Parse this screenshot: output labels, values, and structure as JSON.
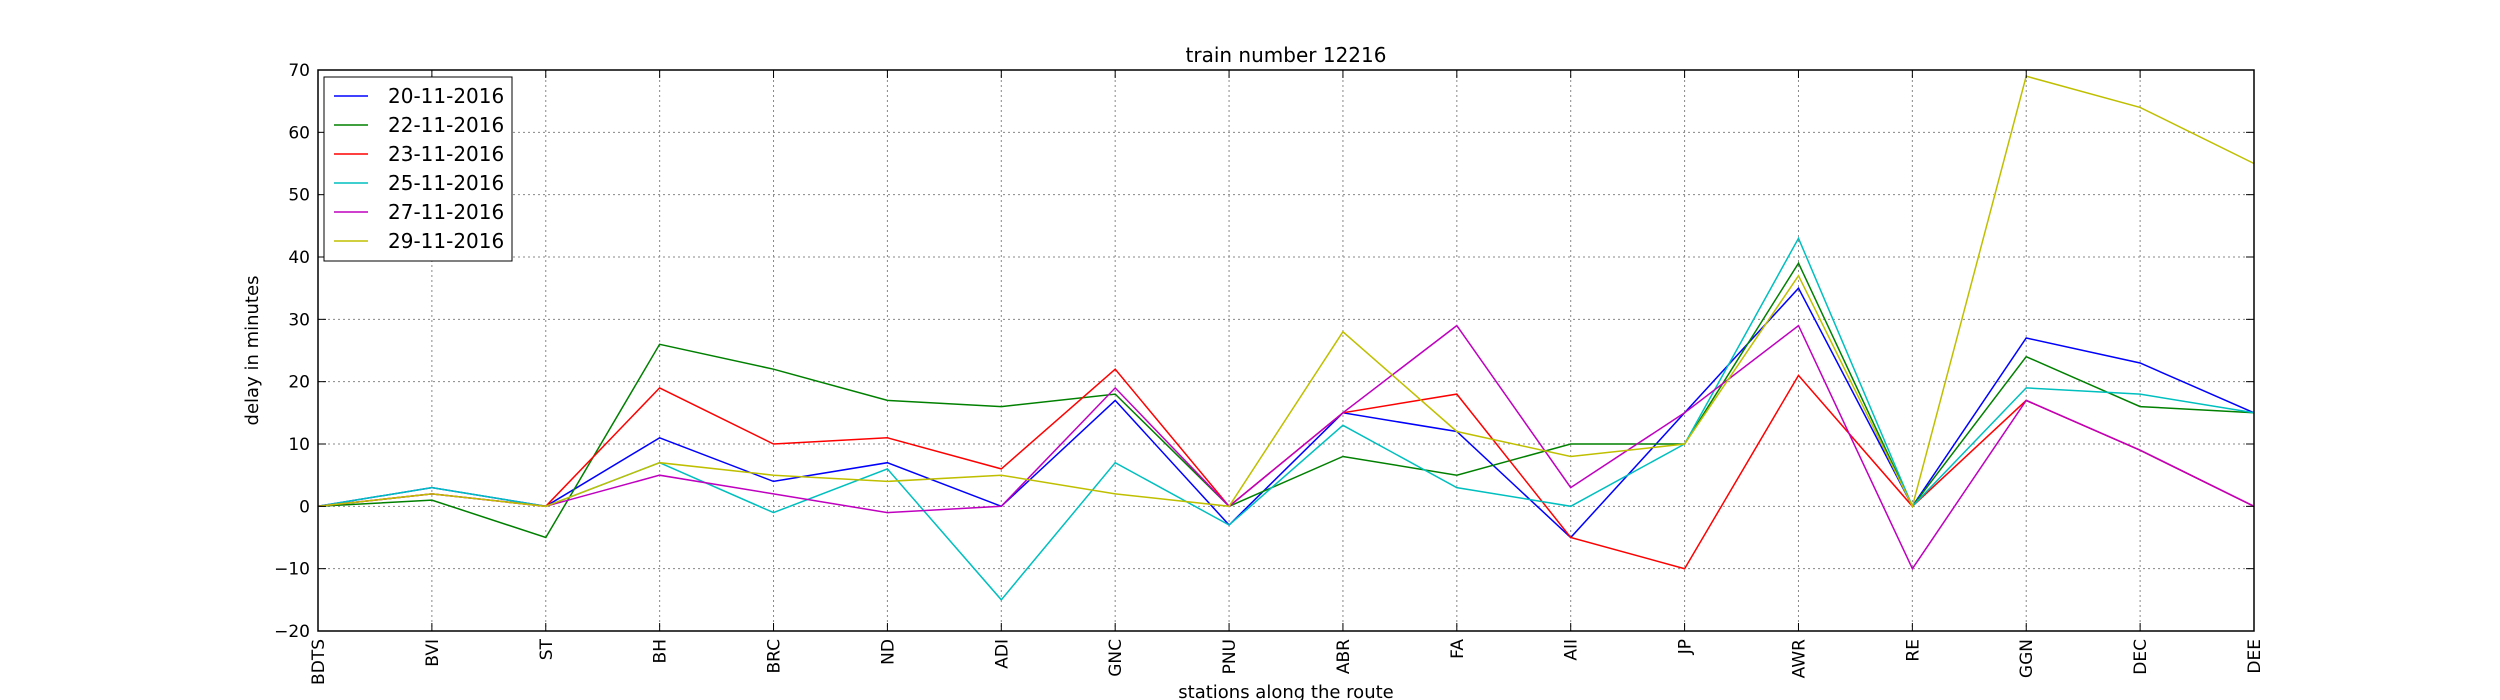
{
  "chart_data": {
    "type": "line",
    "title": "train number 12216",
    "xlabel": "stations along the route",
    "ylabel": "delay in minutes",
    "categories": [
      "BDTS",
      "BVI",
      "ST",
      "BH",
      "BRC",
      "ND",
      "ADI",
      "GNC",
      "PNU",
      "ABR",
      "FA",
      "AII",
      "JP",
      "AWR",
      "RE",
      "GGN",
      "DEC",
      "DEE"
    ],
    "ylim": [
      -20,
      70
    ],
    "yticks": [
      -20,
      -10,
      0,
      10,
      20,
      30,
      40,
      50,
      60,
      70
    ],
    "grid": true,
    "legend_position": "top-left",
    "series": [
      {
        "name": "20-11-2016",
        "color": "#0000ff",
        "values": [
          0,
          3,
          0,
          11,
          4,
          7,
          0,
          17,
          -3,
          15,
          12,
          -5,
          15,
          35,
          0,
          27,
          23,
          15
        ]
      },
      {
        "name": "22-11-2016",
        "color": "#008000",
        "values": [
          0,
          1,
          -5,
          26,
          22,
          17,
          16,
          18,
          0,
          8,
          5,
          10,
          10,
          39,
          0,
          24,
          16,
          15
        ]
      },
      {
        "name": "23-11-2016",
        "color": "#ff0000",
        "values": [
          0,
          2,
          0,
          19,
          10,
          11,
          6,
          22,
          0,
          15,
          18,
          -5,
          -10,
          21,
          0,
          17,
          9,
          0
        ]
      },
      {
        "name": "25-11-2016",
        "color": "#00bfbf",
        "values": [
          0,
          3,
          0,
          7,
          -1,
          6,
          -15,
          7,
          -3,
          13,
          3,
          0,
          10,
          43,
          0,
          19,
          18,
          15
        ]
      },
      {
        "name": "27-11-2016",
        "color": "#bf00bf",
        "values": [
          0,
          2,
          0,
          5,
          2,
          -1,
          0,
          19,
          0,
          15,
          29,
          3,
          15,
          29,
          -10,
          17,
          9,
          0
        ]
      },
      {
        "name": "29-11-2016",
        "color": "#bfbf00",
        "values": [
          0,
          2,
          0,
          7,
          5,
          4,
          5,
          2,
          0,
          28,
          12,
          8,
          10,
          37,
          0,
          69,
          64,
          55
        ]
      }
    ]
  }
}
